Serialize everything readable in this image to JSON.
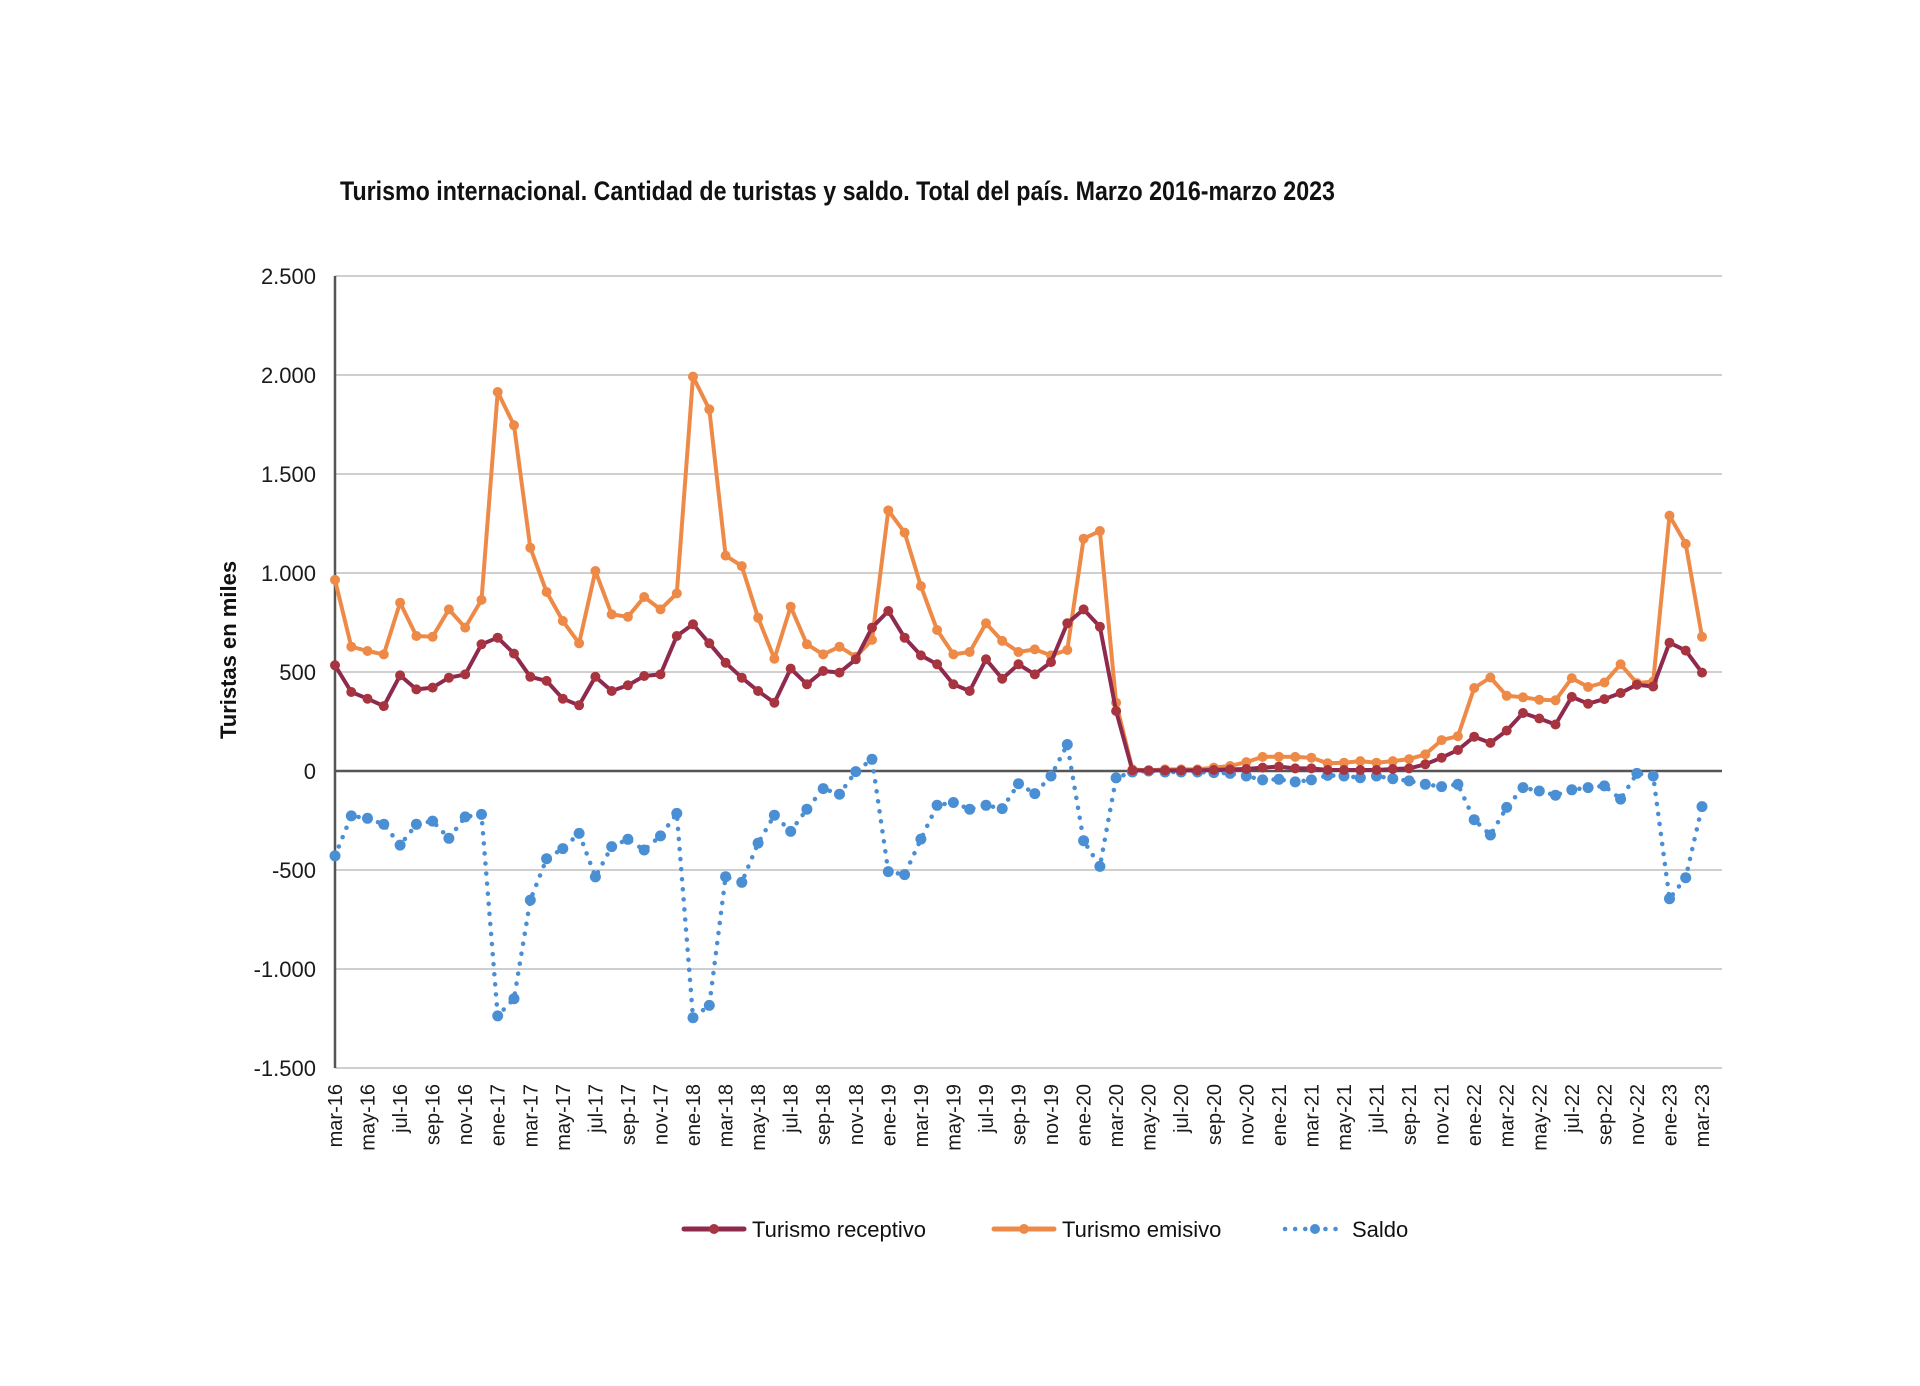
{
  "chart_data": {
    "type": "line",
    "title": "Turismo internacional. Cantidad de turistas y saldo. Total del país. Marzo 2016-marzo 2023",
    "xlabel": "",
    "ylabel": "Turistas en miles",
    "ylim": [
      -1500,
      2500
    ],
    "yticks": [
      2500,
      2000,
      1500,
      1000,
      500,
      0,
      -500,
      -1000,
      -1500
    ],
    "ytick_labels": [
      "2.500",
      "2.000",
      "1.500",
      "1.000",
      "500",
      "0",
      "-500",
      "-1.000",
      "-1.500"
    ],
    "grid": true,
    "legend_position": "bottom",
    "x": [
      "mar-16",
      "abr-16",
      "may-16",
      "jun-16",
      "jul-16",
      "ago-16",
      "sep-16",
      "oct-16",
      "nov-16",
      "dic-16",
      "ene-17",
      "feb-17",
      "mar-17",
      "abr-17",
      "may-17",
      "jun-17",
      "jul-17",
      "ago-17",
      "sep-17",
      "oct-17",
      "nov-17",
      "dic-17",
      "ene-18",
      "feb-18",
      "mar-18",
      "abr-18",
      "may-18",
      "jun-18",
      "jul-18",
      "ago-18",
      "sep-18",
      "oct-18",
      "nov-18",
      "dic-18",
      "ene-19",
      "feb-19",
      "mar-19",
      "abr-19",
      "may-19",
      "jun-19",
      "jul-19",
      "ago-19",
      "sep-19",
      "oct-19",
      "nov-19",
      "dic-19",
      "ene-20",
      "feb-20",
      "mar-20",
      "abr-20",
      "may-20",
      "jun-20",
      "jul-20",
      "ago-20",
      "sep-20",
      "oct-20",
      "nov-20",
      "dic-20",
      "ene-21",
      "feb-21",
      "mar-21",
      "abr-21",
      "may-21",
      "jun-21",
      "jul-21",
      "ago-21",
      "sep-21",
      "oct-21",
      "nov-21",
      "dic-21",
      "ene-22",
      "feb-22",
      "mar-22",
      "abr-22",
      "may-22",
      "jun-22",
      "jul-22",
      "ago-22",
      "sep-22",
      "oct-22",
      "nov-22",
      "dic-22",
      "ene-23",
      "feb-23",
      "mar-23"
    ],
    "xtick_labels": [
      "mar-16",
      "may-16",
      "jul-16",
      "sep-16",
      "nov-16",
      "ene-17",
      "mar-17",
      "may-17",
      "jul-17",
      "sep-17",
      "nov-17",
      "ene-18",
      "mar-18",
      "may-18",
      "jul-18",
      "sep-18",
      "nov-18",
      "ene-19",
      "mar-19",
      "may-19",
      "jul-19",
      "sep-19",
      "nov-19",
      "ene-20",
      "mar-20",
      "may-20",
      "jul-20",
      "sep-20",
      "nov-20",
      "ene-21",
      "mar-21",
      "may-21",
      "jul-21",
      "sep-21",
      "nov-21",
      "ene-22",
      "mar-22",
      "may-22",
      "jul-22",
      "sep-22",
      "nov-22",
      "ene-23",
      "mar-23"
    ],
    "series": [
      {
        "name": "Turismo receptivo",
        "color": "#8e2a4e",
        "marker_color": "#a8343f",
        "style": "solid",
        "values": [
          534,
          399,
          365,
          328,
          483,
          412,
          421,
          471,
          488,
          640,
          673,
          593,
          476,
          455,
          365,
          332,
          476,
          404,
          433,
          480,
          488,
          682,
          741,
          645,
          547,
          471,
          404,
          345,
          517,
          438,
          505,
          497,
          564,
          724,
          808,
          673,
          584,
          539,
          438,
          404,
          564,
          466,
          539,
          488,
          550,
          746,
          816,
          729,
          303,
          3,
          3,
          3,
          3,
          3,
          5,
          8,
          10,
          17,
          22,
          13,
          13,
          5,
          5,
          5,
          5,
          10,
          13,
          34,
          67,
          106,
          173,
          142,
          204,
          293,
          265,
          235,
          374,
          340,
          363,
          394,
          436,
          427,
          648,
          608,
          497
        ]
      },
      {
        "name": "Turismo emisivo",
        "color": "#ee8a47",
        "marker_color": "#ee8a47",
        "style": "solid",
        "values": [
          965,
          628,
          606,
          589,
          850,
          682,
          678,
          816,
          724,
          864,
          1914,
          1746,
          1128,
          904,
          758,
          645,
          1010,
          791,
          779,
          879,
          816,
          897,
          1992,
          1827,
          1088,
          1035,
          774,
          567,
          830,
          640,
          589,
          628,
          577,
          662,
          1316,
          1204,
          934,
          712,
          589,
          601,
          746,
          657,
          601,
          614,
          584,
          611,
          1173,
          1212,
          345,
          8,
          3,
          8,
          8,
          8,
          17,
          25,
          45,
          71,
          72,
          71,
          67,
          39,
          42,
          50,
          42,
          50,
          60,
          84,
          156,
          176,
          419,
          472,
          380,
          372,
          360,
          357,
          469,
          424,
          447,
          539,
          444,
          452,
          1290,
          1147,
          678
        ]
      },
      {
        "name": "Saldo",
        "color": "#4a8fd4",
        "marker_color": "#4a8fd4",
        "style": "dotted",
        "values": [
          -429,
          -227,
          -239,
          -269,
          -374,
          -269,
          -253,
          -340,
          -232,
          -219,
          -1237,
          -1150,
          -652,
          -443,
          -392,
          -315,
          -535,
          -382,
          -345,
          -399,
          -328,
          -214,
          -1246,
          -1184,
          -534,
          -562,
          -364,
          -223,
          -305,
          -193,
          -89,
          -117,
          -3,
          59,
          -508,
          -523,
          -344,
          -173,
          -159,
          -193,
          -173,
          -190,
          -64,
          -114,
          -25,
          134,
          -352,
          -482,
          -35,
          -5,
          0,
          -5,
          -5,
          -5,
          -8,
          -12,
          -25,
          -45,
          -42,
          -55,
          -45,
          -22,
          -25,
          -34,
          -25,
          -39,
          -50,
          -67,
          -79,
          -67,
          -246,
          -323,
          -184,
          -84,
          -101,
          -122,
          -95,
          -84,
          -75,
          -142,
          -12,
          -25,
          -645,
          -539,
          -180
        ]
      }
    ]
  }
}
